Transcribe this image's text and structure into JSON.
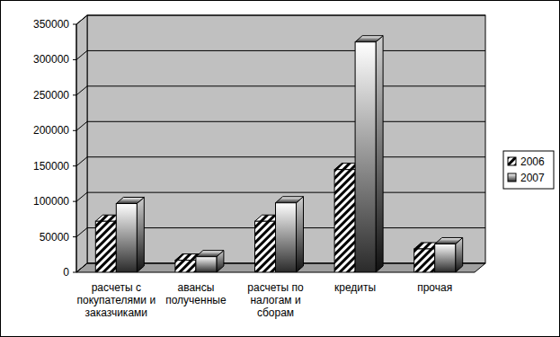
{
  "chart_data": {
    "type": "bar",
    "categories": [
      "расчеты с покупателями и заказчиками",
      "авансы полученные",
      "расчеты по налогам и сборам",
      "кредиты",
      "прочая"
    ],
    "series": [
      {
        "name": "2006",
        "color": "#000000",
        "values": [
          72000,
          17000,
          72000,
          145000,
          33000
        ]
      },
      {
        "name": "2007",
        "color": "#808080",
        "values": [
          97000,
          22000,
          98000,
          325000,
          40000
        ]
      }
    ],
    "ylim": [
      0,
      350000
    ],
    "yticks": [
      0,
      50000,
      100000,
      150000,
      200000,
      250000,
      300000,
      350000
    ],
    "grid": true,
    "legend": "right"
  }
}
